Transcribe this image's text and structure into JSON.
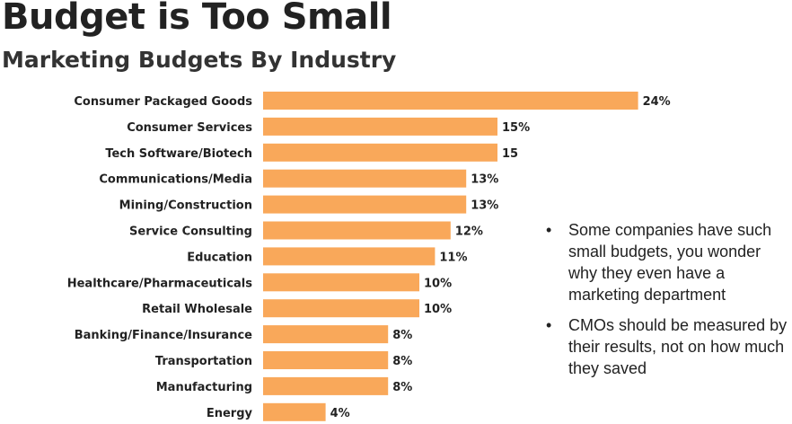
{
  "title": "Budget is Too Small",
  "subtitle": "Marketing Budgets By Industry",
  "bullets": [
    "Some companies have such small budgets, you wonder why they even have a marketing department",
    "CMOs should be measured by their results, not on how much they saved"
  ],
  "chart_data": {
    "type": "bar",
    "orientation": "horizontal",
    "categories": [
      "Consumer Packaged Goods",
      "Consumer Services",
      "Tech Software/Biotech",
      "Communications/Media",
      "Mining/Construction",
      "Service Consulting",
      "Education",
      "Healthcare/Pharmaceuticals",
      "Retail Wholesale",
      "Banking/Finance/Insurance",
      "Transportation",
      "Manufacturing",
      "Energy"
    ],
    "values": [
      24,
      15,
      15,
      13,
      13,
      12,
      11,
      10,
      10,
      8,
      8,
      8,
      4
    ],
    "data_labels": [
      "24%",
      "15%",
      "15",
      "13%",
      "13%",
      "12%",
      "11%",
      "10%",
      "10%",
      "8%",
      "8%",
      "8%",
      "4%"
    ],
    "bar_color": "#F9A85A",
    "grid": false
  }
}
